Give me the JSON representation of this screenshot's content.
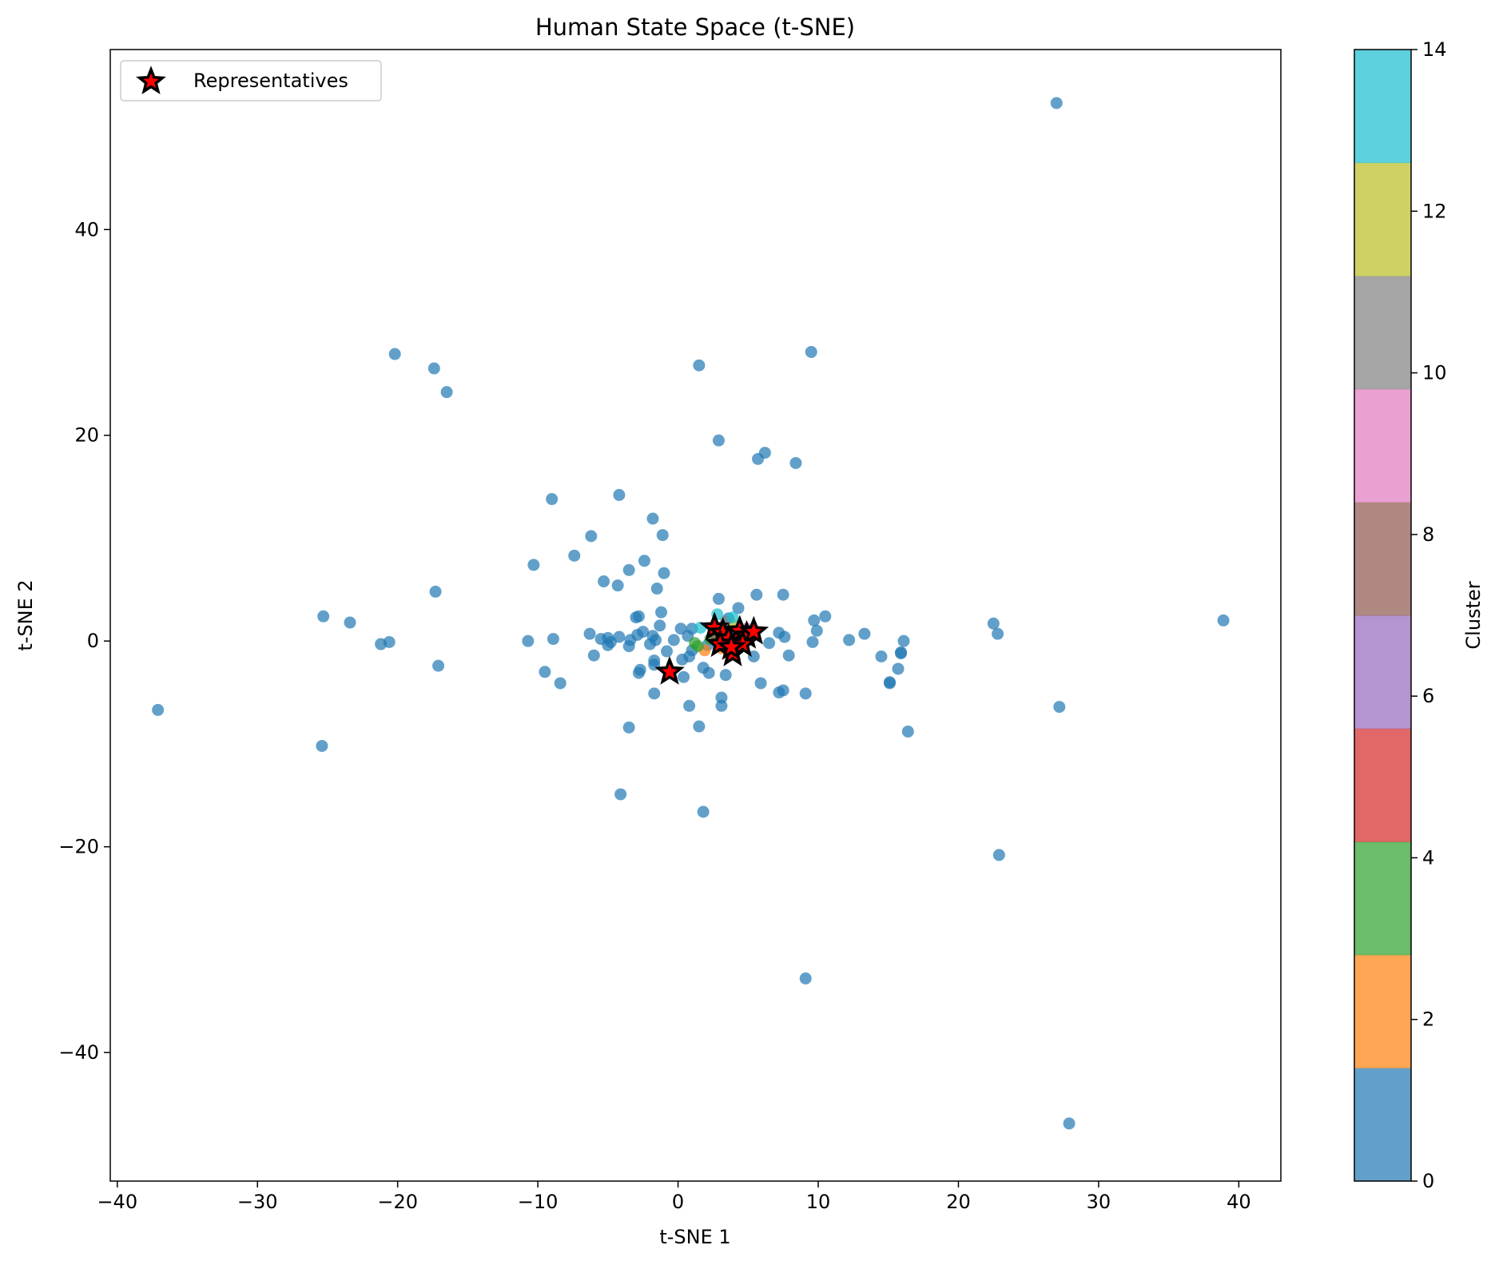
{
  "chart_data": {
    "type": "scatter",
    "title": "Human State Space (t-SNE)",
    "xlabel": "t-SNE 1",
    "ylabel": "t-SNE 2",
    "xlim": [
      -40.5,
      43
    ],
    "ylim": [
      -52.5,
      57.5
    ],
    "xticks": [
      -40,
      -30,
      -20,
      -10,
      0,
      10,
      20,
      30,
      40
    ],
    "yticks": [
      -40,
      -20,
      0,
      20,
      40
    ],
    "grid": false,
    "legend": {
      "position": "top-left",
      "entries": [
        "Representatives"
      ]
    },
    "colorbar": {
      "label": "Cluster",
      "range": [
        0,
        14
      ],
      "ticks": [
        0,
        2,
        4,
        6,
        8,
        10,
        12,
        14
      ],
      "colors": [
        "#1f77b4",
        "#ff7f0e",
        "#2ca02c",
        "#d62728",
        "#9467bd",
        "#8c564b",
        "#e377c2",
        "#7f7f7f",
        "#bcbd22",
        "#17becf"
      ]
    },
    "series": [
      {
        "cluster": 0,
        "color": "#1f77b4",
        "points": [
          [
            27.0,
            52.3
          ],
          [
            -20.2,
            27.9
          ],
          [
            -17.4,
            26.5
          ],
          [
            -16.5,
            24.2
          ],
          [
            1.5,
            26.8
          ],
          [
            9.5,
            28.1
          ],
          [
            2.9,
            19.5
          ],
          [
            6.2,
            18.3
          ],
          [
            5.7,
            17.7
          ],
          [
            8.4,
            17.3
          ],
          [
            -9.0,
            13.8
          ],
          [
            -4.2,
            14.2
          ],
          [
            -1.8,
            11.9
          ],
          [
            -6.2,
            10.2
          ],
          [
            -1.1,
            10.3
          ],
          [
            -10.3,
            7.4
          ],
          [
            -7.4,
            8.3
          ],
          [
            -2.4,
            7.8
          ],
          [
            -3.5,
            6.9
          ],
          [
            -1.0,
            6.6
          ],
          [
            -5.3,
            5.8
          ],
          [
            -4.3,
            5.4
          ],
          [
            -1.5,
            5.1
          ],
          [
            -17.3,
            4.8
          ],
          [
            5.6,
            4.5
          ],
          [
            7.5,
            4.5
          ],
          [
            2.9,
            4.1
          ],
          [
            4.3,
            3.2
          ],
          [
            -2.8,
            2.4
          ],
          [
            -3.0,
            2.3
          ],
          [
            -1.2,
            2.8
          ],
          [
            10.5,
            2.4
          ],
          [
            9.7,
            2.0
          ],
          [
            -25.3,
            2.4
          ],
          [
            -23.4,
            1.8
          ],
          [
            22.5,
            1.7
          ],
          [
            38.9,
            2.0
          ],
          [
            -1.3,
            1.5
          ],
          [
            9.9,
            1.0
          ],
          [
            13.3,
            0.7
          ],
          [
            22.8,
            0.7
          ],
          [
            7.2,
            0.8
          ],
          [
            7.6,
            0.4
          ],
          [
            -6.3,
            0.7
          ],
          [
            -2.5,
            0.9
          ],
          [
            -2.9,
            0.6
          ],
          [
            -1.8,
            0.5
          ],
          [
            -4.2,
            0.4
          ],
          [
            -5.0,
            0.3
          ],
          [
            -5.5,
            0.2
          ],
          [
            -4.8,
            -0.1
          ],
          [
            -5.0,
            -0.4
          ],
          [
            -3.4,
            0.1
          ],
          [
            -10.7,
            0.0
          ],
          [
            -8.9,
            0.2
          ],
          [
            -20.6,
            -0.1
          ],
          [
            -21.2,
            -0.3
          ],
          [
            12.2,
            0.1
          ],
          [
            16.1,
            0.0
          ],
          [
            9.6,
            -0.1
          ],
          [
            6.5,
            -0.2
          ],
          [
            -0.3,
            0.1
          ],
          [
            0.2,
            1.2
          ],
          [
            0.7,
            0.5
          ],
          [
            -1.6,
            0.1
          ],
          [
            -2.0,
            -0.3
          ],
          [
            -3.5,
            -0.5
          ],
          [
            -6.0,
            -1.4
          ],
          [
            -1.7,
            -1.9
          ],
          [
            -0.8,
            -1.0
          ],
          [
            0.8,
            -1.5
          ],
          [
            0.3,
            -1.8
          ],
          [
            7.9,
            -1.4
          ],
          [
            14.5,
            -1.5
          ],
          [
            15.9,
            -1.1
          ],
          [
            15.9,
            -1.2
          ],
          [
            15.7,
            -2.7
          ],
          [
            -17.1,
            -2.4
          ],
          [
            -9.5,
            -3.0
          ],
          [
            -8.4,
            -4.1
          ],
          [
            -2.7,
            -2.8
          ],
          [
            -2.8,
            -3.1
          ],
          [
            -1.7,
            -2.3
          ],
          [
            0.4,
            -3.5
          ],
          [
            1.8,
            -2.6
          ],
          [
            2.2,
            -3.1
          ],
          [
            3.4,
            -3.3
          ],
          [
            15.1,
            -4.0
          ],
          [
            15.1,
            -4.1
          ],
          [
            5.9,
            -4.1
          ],
          [
            -1.7,
            -5.1
          ],
          [
            7.2,
            -5.0
          ],
          [
            7.5,
            -4.8
          ],
          [
            9.1,
            -5.1
          ],
          [
            3.1,
            -5.5
          ],
          [
            3.1,
            -6.3
          ],
          [
            0.8,
            -6.3
          ],
          [
            27.2,
            -6.4
          ],
          [
            -37.1,
            -6.7
          ],
          [
            -3.5,
            -8.4
          ],
          [
            1.5,
            -8.3
          ],
          [
            16.4,
            -8.8
          ],
          [
            -25.4,
            -10.2
          ],
          [
            -4.1,
            -14.9
          ],
          [
            1.8,
            -16.6
          ],
          [
            22.9,
            -20.8
          ],
          [
            9.1,
            -32.8
          ],
          [
            27.9,
            -46.9
          ],
          [
            1.0,
            -0.9
          ],
          [
            2.1,
            -0.4
          ],
          [
            5.4,
            -1.5
          ],
          [
            3.6,
            2.2
          ],
          [
            1.0,
            1.2
          ]
        ]
      },
      {
        "cluster": 2,
        "color": "#ff7f0e",
        "points": [
          [
            1.9,
            -0.9
          ],
          [
            3.1,
            -0.7
          ]
        ]
      },
      {
        "cluster": 4,
        "color": "#2ca02c",
        "points": [
          [
            1.4,
            -0.5
          ],
          [
            1.2,
            -0.2
          ],
          [
            2.3,
            0.2
          ]
        ]
      },
      {
        "cluster": 5,
        "color": "#d62728",
        "points": [
          [
            3.6,
            0.4
          ],
          [
            4.2,
            -0.6
          ]
        ]
      },
      {
        "cluster": 7,
        "color": "#8c564b",
        "points": [
          [
            2.7,
            0.6
          ]
        ]
      },
      {
        "cluster": 9,
        "color": "#e377c2",
        "points": [
          [
            4.9,
            1.2
          ]
        ]
      },
      {
        "cluster": 11,
        "color": "#7f7f7f",
        "points": [
          [
            3.4,
            1.9
          ]
        ]
      },
      {
        "cluster": 12,
        "color": "#bcbd22",
        "points": [
          [
            4.1,
            1.5
          ]
        ]
      },
      {
        "cluster": 14,
        "color": "#17becf",
        "points": [
          [
            2.8,
            2.6
          ],
          [
            1.6,
            1.3
          ],
          [
            3.9,
            2.3
          ]
        ]
      }
    ],
    "representatives": {
      "name": "Representatives",
      "marker": "star",
      "fill": "#ff0000",
      "edge": "#000000",
      "points": [
        [
          -0.6,
          -3.0
        ],
        [
          2.6,
          1.3
        ],
        [
          3.2,
          0.8
        ],
        [
          3.6,
          0.2
        ],
        [
          4.4,
          1.0
        ],
        [
          4.9,
          0.5
        ],
        [
          5.4,
          0.9
        ],
        [
          3.0,
          -0.3
        ],
        [
          3.9,
          -1.2
        ],
        [
          4.6,
          -0.3
        ],
        [
          3.8,
          -0.6
        ]
      ]
    }
  }
}
